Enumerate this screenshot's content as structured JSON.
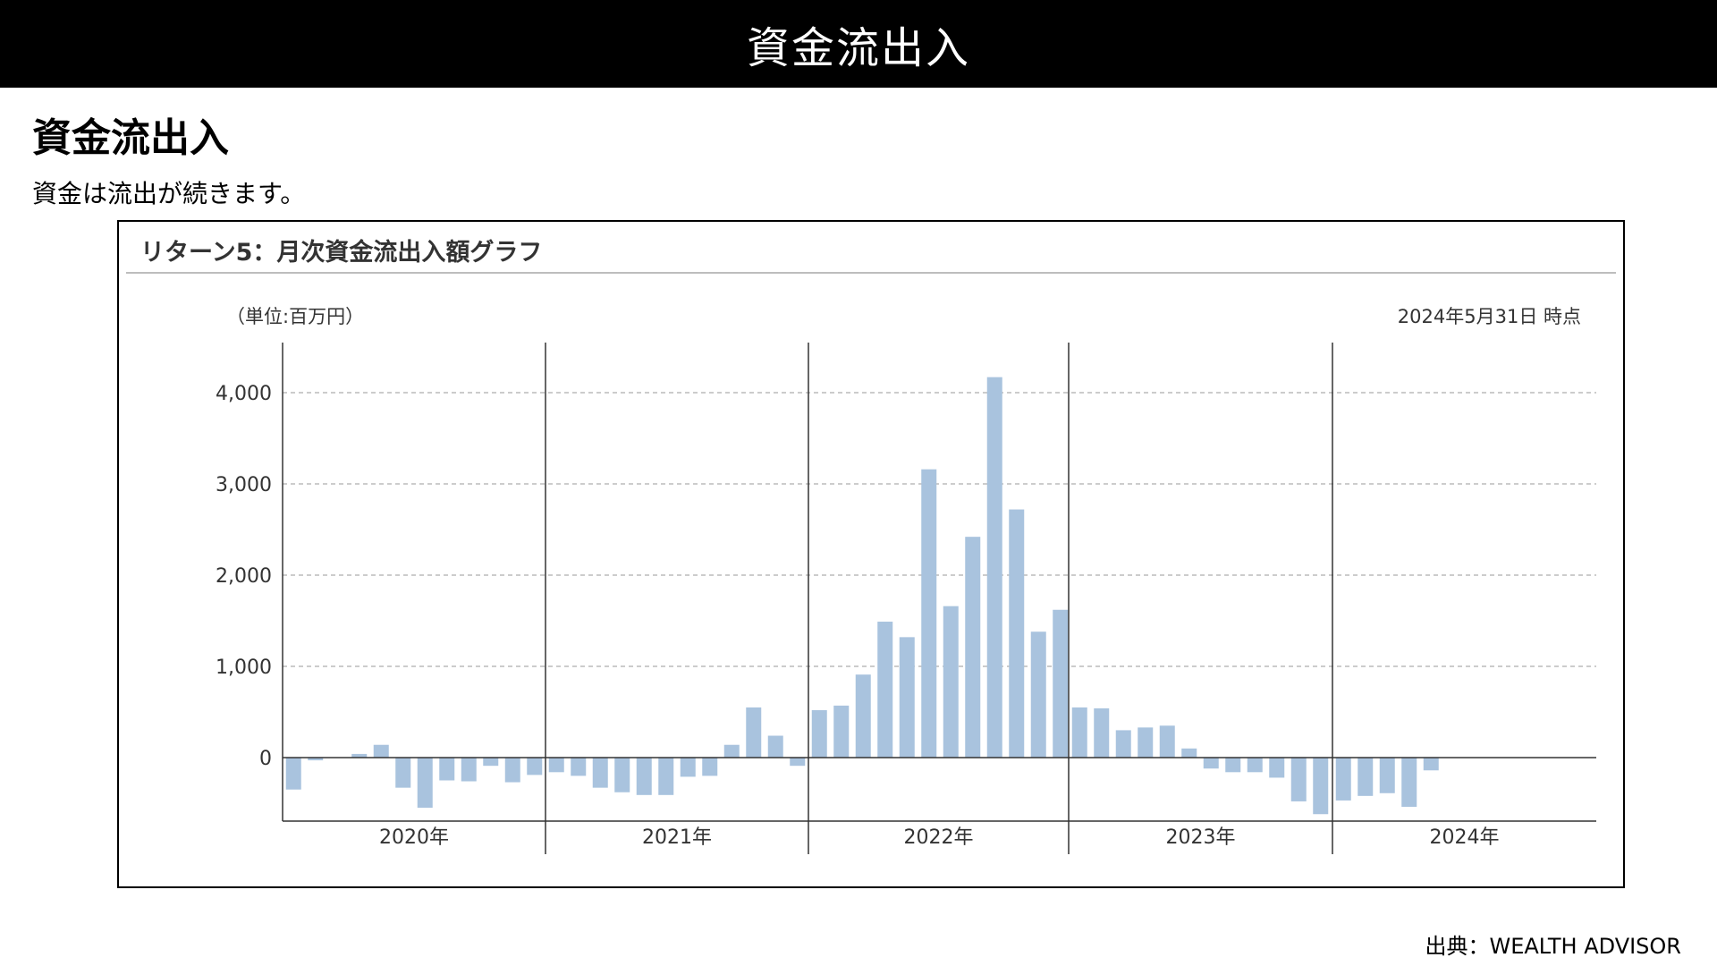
{
  "header": {
    "title": "資金流出入"
  },
  "section": {
    "heading": "資金流出入",
    "description": "資金は流出が続きます。"
  },
  "chart_panel": {
    "title": "リターン5：月次資金流出入額グラフ",
    "unit_label": "（単位:百万円）",
    "as_of_label": "2024年5月31日 時点"
  },
  "source": "出典：WEALTH ADVISOR",
  "colors": {
    "bar": "#a9c3de",
    "header_bg": "#000000",
    "grid": "#bbbbbb"
  },
  "chart_data": {
    "type": "bar",
    "title": "リターン5：月次資金流出入額グラフ",
    "ylabel": "（単位:百万円）",
    "ylim": [
      -700,
      4300
    ],
    "yticks": [
      0,
      1000,
      2000,
      3000,
      4000
    ],
    "ytick_labels": [
      "0",
      "1,000",
      "2,000",
      "3,000",
      "4,000"
    ],
    "grid": "horizontal dashed",
    "year_labels": [
      "2020年",
      "2021年",
      "2022年",
      "2023年",
      "2024年"
    ],
    "series": [
      {
        "values_by_year": [
          [
            -350,
            -30,
            0,
            40,
            140,
            -330,
            -550,
            -250,
            -260,
            -90,
            -270,
            -190
          ],
          [
            -160,
            -200,
            -330,
            -380,
            -410,
            -410,
            -210,
            -200,
            140,
            550,
            240,
            -90
          ],
          [
            520,
            570,
            910,
            1490,
            1320,
            3160,
            1660,
            2420,
            4170,
            2720,
            1380,
            1620
          ],
          [
            550,
            540,
            300,
            330,
            350,
            100,
            -120,
            -160,
            -160,
            -220,
            -480,
            -620
          ],
          [
            -470,
            -420,
            -390,
            -540,
            -140
          ]
        ]
      }
    ]
  }
}
